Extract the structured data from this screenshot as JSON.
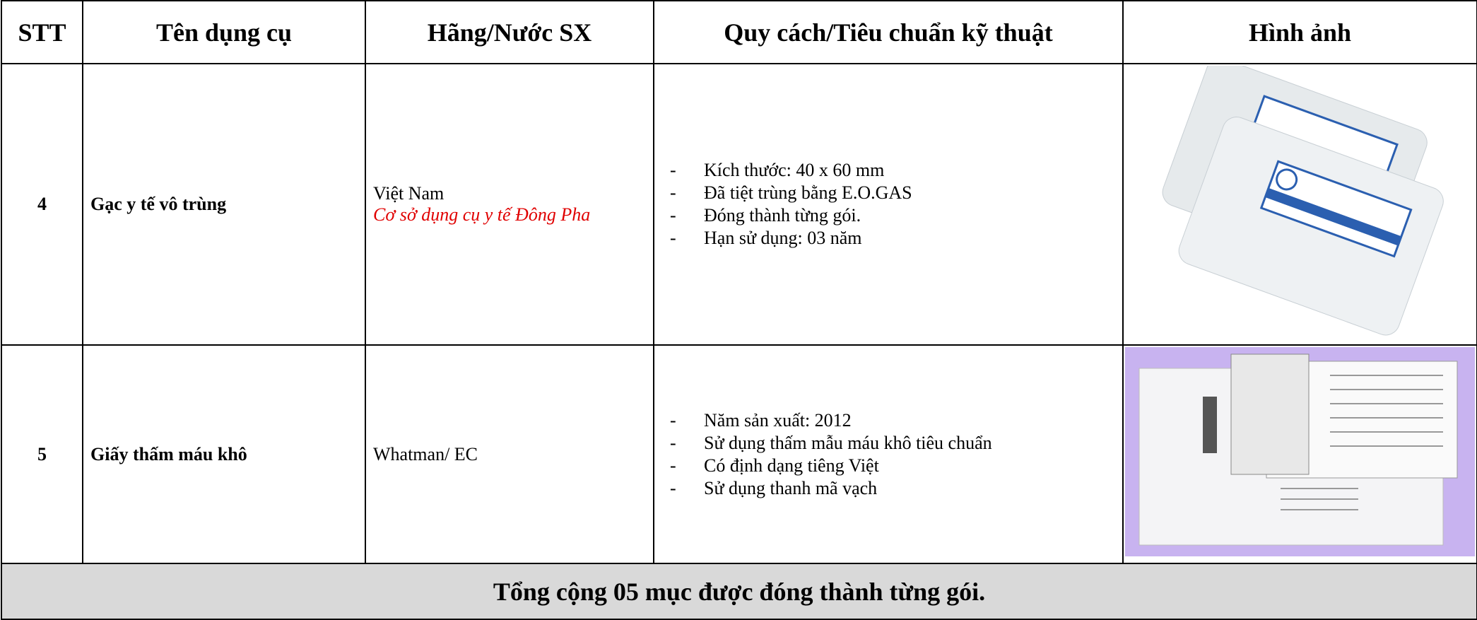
{
  "table": {
    "headers": [
      "STT",
      "Tên dụng cụ",
      "Hãng/Nước SX",
      "Quy cách/Tiêu chuẩn kỹ thuật",
      "Hình ảnh"
    ],
    "rows": [
      {
        "stt": "4",
        "name": "Gạc y tế vô trùng",
        "maker": [
          "Việt Nam",
          "Cơ sở dụng cụ y tế Đông Pha"
        ],
        "specs": [
          "Kích thước: 40 x 60 mm",
          "Đã tiệt trùng bằng E.O.GAS",
          "Đóng thành từng gói.",
          "Hạn sử dụng: 03 năm"
        ]
      },
      {
        "stt": "5",
        "name": "Giấy thấm máu khô",
        "maker": [
          "Whatman/ EC"
        ],
        "specs": [
          "Năm sản xuất: 2012",
          "Sử dụng thấm mẫu máu khô tiêu chuẩn",
          "Có định dạng tiêng Việt",
          "Sử dụng thanh mã vạch"
        ]
      }
    ],
    "footer": "Tổng cộng 05 mục được đóng thành từng gói."
  }
}
